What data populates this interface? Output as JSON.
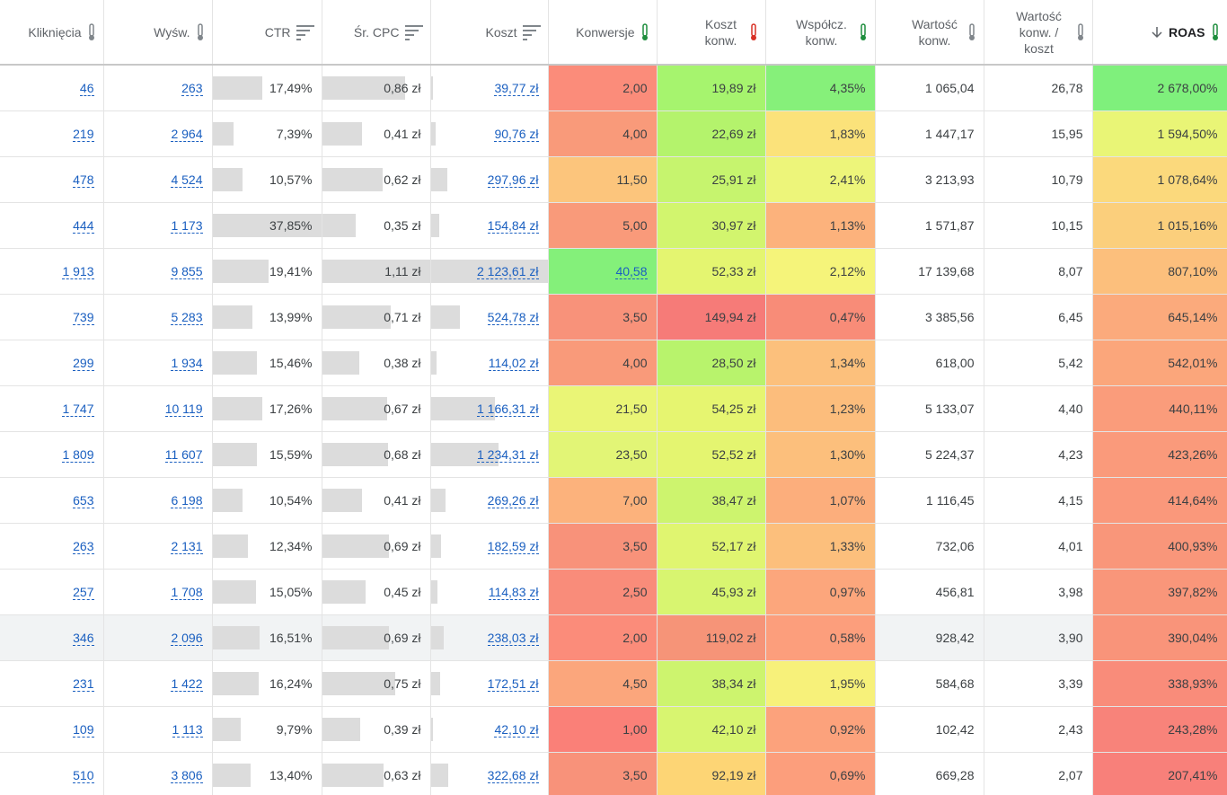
{
  "table": {
    "headers": [
      "Kliknięcia",
      "Wyśw.",
      "CTR",
      "Śr. CPC",
      "Koszt",
      "Konwersje",
      "Koszt konw.",
      "Współcz. konw.",
      "Wartość konw.",
      "Wartość konw. / koszt",
      "ROAS"
    ],
    "rows": [
      [
        "46",
        "263",
        "17,49%",
        "0,86 zł",
        "39,77 zł",
        "2,00",
        "19,89 zł",
        "4,35%",
        "1 065,04",
        "26,78",
        "2 678,00%"
      ],
      [
        "219",
        "2 964",
        "7,39%",
        "0,41 zł",
        "90,76 zł",
        "4,00",
        "22,69 zł",
        "1,83%",
        "1 447,17",
        "15,95",
        "1 594,50%"
      ],
      [
        "478",
        "4 524",
        "10,57%",
        "0,62 zł",
        "297,96 zł",
        "11,50",
        "25,91 zł",
        "2,41%",
        "3 213,93",
        "10,79",
        "1 078,64%"
      ],
      [
        "444",
        "1 173",
        "37,85%",
        "0,35 zł",
        "154,84 zł",
        "5,00",
        "30,97 zł",
        "1,13%",
        "1 571,87",
        "10,15",
        "1 015,16%"
      ],
      [
        "1 913",
        "9 855",
        "19,41%",
        "1,11 zł",
        "2 123,61 zł",
        "40,58",
        "52,33 zł",
        "2,12%",
        "17 139,68",
        "8,07",
        "807,10%"
      ],
      [
        "739",
        "5 283",
        "13,99%",
        "0,71 zł",
        "524,78 zł",
        "3,50",
        "149,94 zł",
        "0,47%",
        "3 385,56",
        "6,45",
        "645,14%"
      ],
      [
        "299",
        "1 934",
        "15,46%",
        "0,38 zł",
        "114,02 zł",
        "4,00",
        "28,50 zł",
        "1,34%",
        "618,00",
        "5,42",
        "542,01%"
      ],
      [
        "1 747",
        "10 119",
        "17,26%",
        "0,67 zł",
        "1 166,31 zł",
        "21,50",
        "54,25 zł",
        "1,23%",
        "5 133,07",
        "4,40",
        "440,11%"
      ],
      [
        "1 809",
        "11 607",
        "15,59%",
        "0,68 zł",
        "1 234,31 zł",
        "23,50",
        "52,52 zł",
        "1,30%",
        "5 224,37",
        "4,23",
        "423,26%"
      ],
      [
        "653",
        "6 198",
        "10,54%",
        "0,41 zł",
        "269,26 zł",
        "7,00",
        "38,47 zł",
        "1,07%",
        "1 116,45",
        "4,15",
        "414,64%"
      ],
      [
        "263",
        "2 131",
        "12,34%",
        "0,69 zł",
        "182,59 zł",
        "3,50",
        "52,17 zł",
        "1,33%",
        "732,06",
        "4,01",
        "400,93%"
      ],
      [
        "257",
        "1 708",
        "15,05%",
        "0,45 zł",
        "114,83 zł",
        "2,50",
        "45,93 zł",
        "0,97%",
        "456,81",
        "3,98",
        "397,82%"
      ],
      [
        "346",
        "2 096",
        "16,51%",
        "0,69 zł",
        "238,03 zł",
        "2,00",
        "119,02 zł",
        "0,58%",
        "928,42",
        "3,90",
        "390,04%"
      ],
      [
        "231",
        "1 422",
        "16,24%",
        "0,75 zł",
        "172,51 zł",
        "4,50",
        "38,34 zł",
        "1,95%",
        "584,68",
        "3,39",
        "338,93%"
      ],
      [
        "109",
        "1 113",
        "9,79%",
        "0,39 zł",
        "42,10 zł",
        "1,00",
        "42,10 zł",
        "0,92%",
        "102,42",
        "2,43",
        "243,28%"
      ],
      [
        "510",
        "3 806",
        "13,40%",
        "0,63 zł",
        "322,68 zł",
        "3,50",
        "92,19 zł",
        "0,69%",
        "669,28",
        "2,07",
        "207,41%"
      ]
    ],
    "heat_colors": [
      [
        "#fb8c7a",
        "#a6f46e",
        "#86f07a",
        "#7ff07c"
      ],
      [
        "#f99a7a",
        "#b4f36c",
        "#fbe27a",
        "#e9f576"
      ],
      [
        "#fcc57c",
        "#c6f46e",
        "#edf57a",
        "#fbd97c"
      ],
      [
        "#f99a7a",
        "#d2f56e",
        "#fcb27c",
        "#fbcf7c"
      ],
      [
        "#84f07a",
        "#e4f570",
        "#f5f47a",
        "#fcbf7c"
      ],
      [
        "#f8927a",
        "#f67b78",
        "#f88c78",
        "#fbaa7c"
      ],
      [
        "#f99a7a",
        "#b8f36c",
        "#fcc07c",
        "#fba67b"
      ],
      [
        "#eaf576",
        "#e6f570",
        "#fcbd7c",
        "#fa9c7b"
      ],
      [
        "#e2f576",
        "#e4f570",
        "#fcbf7c",
        "#fa9a7b"
      ],
      [
        "#fcb27c",
        "#cdf46e",
        "#fcae7c",
        "#fa987b"
      ],
      [
        "#f8927a",
        "#e0f570",
        "#fcbf7c",
        "#f9967a"
      ],
      [
        "#f98c7a",
        "#d8f570",
        "#fca67c",
        "#f9967a"
      ],
      [
        "#fb8c7a",
        "#f69478",
        "#fc9e7c",
        "#f9947a"
      ],
      [
        "#fba67c",
        "#cdf46e",
        "#f7f17a",
        "#f98c7a"
      ],
      [
        "#fa8078",
        "#d8f570",
        "#fca27c",
        "#f8837a"
      ],
      [
        "#f8927a",
        "#fdd575",
        "#fc9e7c",
        "#f8807a"
      ]
    ]
  }
}
